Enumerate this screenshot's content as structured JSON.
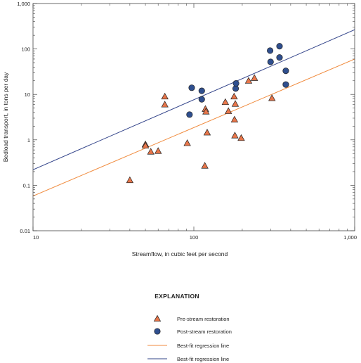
{
  "chart_data": {
    "type": "scatter",
    "xscale": "log",
    "yscale": "log",
    "xlim": [
      10,
      1000
    ],
    "ylim": [
      0.01,
      1000
    ],
    "xlabel": "Streamflow, in cubic feet per second",
    "ylabel": "Bedload transport, in tons per day",
    "x_ticks": [
      10,
      100,
      1000
    ],
    "x_tick_labels": [
      "10",
      "100",
      "1,000"
    ],
    "y_ticks": [
      0.01,
      0.1,
      1,
      10,
      100,
      1000
    ],
    "y_tick_labels": [
      "0.01",
      "0.1",
      "1",
      "10",
      "100",
      "1,000"
    ],
    "grid": false,
    "series": [
      {
        "name": "Pre-stream restoration",
        "marker": "triangle",
        "color": "#e8764a",
        "points": [
          [
            40,
            0.13
          ],
          [
            50,
            0.8
          ],
          [
            50,
            0.75
          ],
          [
            54,
            0.55
          ],
          [
            60,
            0.57
          ],
          [
            66,
            9
          ],
          [
            66,
            6
          ],
          [
            91,
            0.85
          ],
          [
            117,
            0.27
          ],
          [
            118,
            4.8
          ],
          [
            119,
            4.2
          ],
          [
            121,
            1.45
          ],
          [
            157,
            6.8
          ],
          [
            164,
            4.3
          ],
          [
            178,
            9
          ],
          [
            179,
            2.8
          ],
          [
            180,
            1.25
          ],
          [
            181,
            6.2
          ],
          [
            197,
            1.1
          ],
          [
            219,
            20
          ],
          [
            238,
            23
          ],
          [
            306,
            8.3
          ]
        ]
      },
      {
        "name": "Post-stream restoration",
        "marker": "circle",
        "color": "#2f4f8f",
        "points": [
          [
            94,
            3.6
          ],
          [
            97,
            14
          ],
          [
            112,
            12
          ],
          [
            112,
            7.8
          ],
          [
            182,
            13.5
          ],
          [
            183,
            17.5
          ],
          [
            298,
            92
          ],
          [
            300,
            52
          ],
          [
            341,
            115
          ],
          [
            341,
            65
          ],
          [
            373,
            33
          ],
          [
            373,
            16.5
          ]
        ]
      }
    ],
    "regression_lines": [
      {
        "name": "Best-fit regression line",
        "color": "#f08a3c",
        "x": [
          10,
          1000
        ],
        "y": [
          0.058,
          60
        ]
      },
      {
        "name": "Best-fit regression line",
        "color": "#33448a",
        "x": [
          10,
          1000
        ],
        "y": [
          0.22,
          265
        ]
      }
    ],
    "legend": {
      "title": "EXPLANATION",
      "placement": "bottom-center",
      "entries": [
        {
          "label": "Pre-stream restoration",
          "kind": "triangle",
          "color": "#e8764a"
        },
        {
          "label": "Post-stream restoration",
          "kind": "circle",
          "color": "#2f4f8f"
        },
        {
          "label": "Best-fit regression line",
          "kind": "line",
          "color": "#f08a3c"
        },
        {
          "label": "Best-fit regression line",
          "kind": "line",
          "color": "#33448a"
        }
      ]
    }
  }
}
